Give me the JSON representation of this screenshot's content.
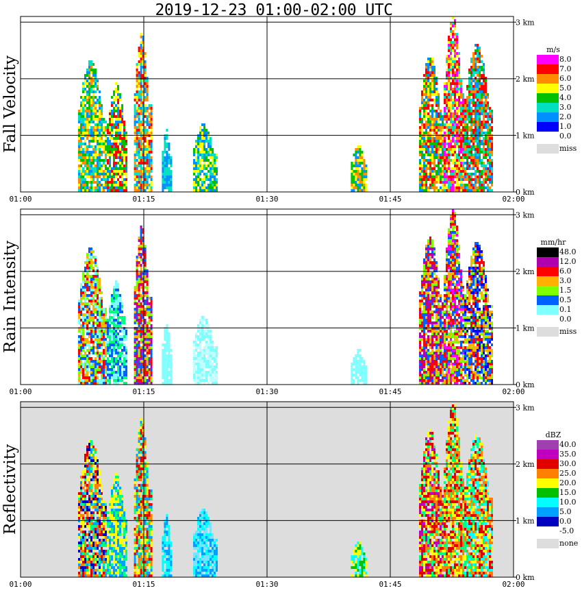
{
  "title": "2019-12-23   01:00-02:00 UTC",
  "chart_data": [
    {
      "type": "heatmap",
      "ylabel": "Fall Velocity",
      "background": "#ffffff",
      "x_ticks": [
        "01:00",
        "01:15",
        "01:30",
        "01:45",
        "02:00"
      ],
      "y_ticks": [
        "0 km",
        "1 km",
        "2 km",
        "3 km"
      ],
      "ylim": [
        0,
        3.1
      ],
      "legend": {
        "unit": "m/s",
        "labels": [
          "8.0",
          "7.0",
          "6.0",
          "5.0",
          "4.0",
          "3.0",
          "2.0",
          "1.0",
          "0.0",
          "miss"
        ],
        "colors": [
          "#ff00ff",
          "#ff0000",
          "#ff8c00",
          "#ffff00",
          "#00c000",
          "#00e0c0",
          "#0090ff",
          "#0000ff",
          "#ffffff",
          "#dddddd"
        ]
      },
      "cells": [
        {
          "t": [
            7.0,
            10.5
          ],
          "h": [
            0.0,
            2.3
          ],
          "colors": [
            "#0090ff",
            "#00e0c0",
            "#00c000",
            "#ffff00",
            "#ff8c00"
          ]
        },
        {
          "t": [
            10.5,
            13.0
          ],
          "h": [
            0.0,
            1.9
          ],
          "colors": [
            "#00c000",
            "#ffff00",
            "#0090ff",
            "#ff0000"
          ]
        },
        {
          "t": [
            13.8,
            15.8
          ],
          "h": [
            0.0,
            2.8
          ],
          "colors": [
            "#ff8c00",
            "#ffff00",
            "#ff0000",
            "#0090ff",
            "#00e0c0"
          ]
        },
        {
          "t": [
            17.2,
            18.3
          ],
          "h": [
            0.0,
            1.1
          ],
          "colors": [
            "#0090ff",
            "#00e0c0"
          ]
        },
        {
          "t": [
            21.0,
            23.8
          ],
          "h": [
            0.0,
            1.2
          ],
          "colors": [
            "#00e0c0",
            "#00c000",
            "#0090ff",
            "#ffff00"
          ]
        },
        {
          "t": [
            40.2,
            42.2
          ],
          "h": [
            0.0,
            0.8
          ],
          "colors": [
            "#00c000",
            "#ffff00",
            "#0090ff",
            "#ff8c00"
          ]
        },
        {
          "t": [
            48.5,
            51.5
          ],
          "h": [
            0.0,
            2.4
          ],
          "colors": [
            "#ff8c00",
            "#ffff00",
            "#ff0000",
            "#0090ff",
            "#00c000"
          ]
        },
        {
          "t": [
            51.5,
            54.0
          ],
          "h": [
            0.0,
            3.1
          ],
          "colors": [
            "#ff0000",
            "#ff8c00",
            "#ffff00",
            "#00e0c0",
            "#ff00ff"
          ]
        },
        {
          "t": [
            54.0,
            57.5
          ],
          "h": [
            0.0,
            2.6
          ],
          "colors": [
            "#ff8c00",
            "#ff0000",
            "#0090ff",
            "#00c000",
            "#00e0c0"
          ]
        }
      ]
    },
    {
      "type": "heatmap",
      "ylabel": "Rain Intensity",
      "background": "#ffffff",
      "x_ticks": [
        "01:00",
        "01:15",
        "01:30",
        "01:45",
        "02:00"
      ],
      "y_ticks": [
        "0 km",
        "1 km",
        "2 km",
        "3 km"
      ],
      "ylim": [
        0,
        3.1
      ],
      "legend": {
        "unit": "mm/hr",
        "labels": [
          "48.0",
          "12.0",
          "6.0",
          "3.0",
          "1.5",
          "0.5",
          "0.1",
          "0.0",
          "miss"
        ],
        "colors": [
          "#000000",
          "#b000b0",
          "#ff0000",
          "#ffb000",
          "#80ff00",
          "#0060ff",
          "#80ffff",
          "#ffffff",
          "#dddddd"
        ]
      },
      "cells": [
        {
          "t": [
            7.0,
            10.5
          ],
          "h": [
            0.0,
            2.4
          ],
          "colors": [
            "#80ffff",
            "#0060ff",
            "#80ff00",
            "#ffb000",
            "#ff0000"
          ]
        },
        {
          "t": [
            10.5,
            13.0
          ],
          "h": [
            0.0,
            1.8
          ],
          "colors": [
            "#80ffff",
            "#0060ff",
            "#00ff80"
          ]
        },
        {
          "t": [
            13.8,
            15.8
          ],
          "h": [
            0.0,
            2.8
          ],
          "colors": [
            "#ff0000",
            "#b000b0",
            "#0060ff",
            "#80ff00",
            "#ffb000"
          ]
        },
        {
          "t": [
            17.2,
            18.3
          ],
          "h": [
            0.0,
            1.1
          ],
          "colors": [
            "#80ffff"
          ]
        },
        {
          "t": [
            21.0,
            23.8
          ],
          "h": [
            0.0,
            1.2
          ],
          "colors": [
            "#80ffff",
            "#c0ffff"
          ]
        },
        {
          "t": [
            40.2,
            42.2
          ],
          "h": [
            0.0,
            0.6
          ],
          "colors": [
            "#80ffff"
          ]
        },
        {
          "t": [
            48.5,
            51.5
          ],
          "h": [
            0.0,
            2.6
          ],
          "colors": [
            "#ff0000",
            "#b000b0",
            "#0060ff",
            "#80ff00",
            "#ffb000"
          ]
        },
        {
          "t": [
            51.5,
            54.0
          ],
          "h": [
            0.0,
            3.1
          ],
          "colors": [
            "#ff0000",
            "#ff00ff",
            "#80ff00",
            "#0060ff",
            "#ffb000"
          ]
        },
        {
          "t": [
            54.0,
            57.5
          ],
          "h": [
            0.0,
            2.5
          ],
          "colors": [
            "#0000ff",
            "#0060ff",
            "#ff0000",
            "#ffb000",
            "#80ff00"
          ]
        }
      ]
    },
    {
      "type": "heatmap",
      "ylabel": "Reflectivity",
      "background": "#dddddd",
      "x_ticks": [
        "01:00",
        "01:15",
        "01:30",
        "01:45",
        "02:00"
      ],
      "y_ticks": [
        "0 km",
        "1 km",
        "2 km",
        "3 km"
      ],
      "ylim": [
        0,
        3.1
      ],
      "legend": {
        "unit": "dBZ",
        "labels": [
          "40.0",
          "35.0",
          "30.0",
          "25.0",
          "20.0",
          "15.0",
          "10.0",
          "5.0",
          "0.0",
          "-5.0",
          "none"
        ],
        "colors": [
          "#a040b0",
          "#c000c0",
          "#e00000",
          "#ff8000",
          "#ffff00",
          "#00c000",
          "#00ffff",
          "#00a0ff",
          "#0000c0",
          "#ffffff",
          "#dddddd"
        ]
      },
      "cells": [
        {
          "t": [
            7.0,
            10.5
          ],
          "h": [
            0.0,
            2.4
          ],
          "colors": [
            "#0000c0",
            "#00a0ff",
            "#00ff80",
            "#ffff00",
            "#ff8000",
            "#e00000"
          ]
        },
        {
          "t": [
            10.5,
            13.0
          ],
          "h": [
            0.0,
            1.8
          ],
          "colors": [
            "#00a0ff",
            "#00ff80",
            "#ffff00"
          ]
        },
        {
          "t": [
            13.8,
            15.8
          ],
          "h": [
            0.0,
            2.8
          ],
          "colors": [
            "#ff8000",
            "#ffff00",
            "#e00000",
            "#00ff80",
            "#00a0ff"
          ]
        },
        {
          "t": [
            17.2,
            18.3
          ],
          "h": [
            0.0,
            1.1
          ],
          "colors": [
            "#00a0ff",
            "#00ffff"
          ]
        },
        {
          "t": [
            21.0,
            23.8
          ],
          "h": [
            0.0,
            1.2
          ],
          "colors": [
            "#00a0ff",
            "#00ffff",
            "#80e0ff"
          ]
        },
        {
          "t": [
            40.2,
            42.2
          ],
          "h": [
            0.0,
            0.6
          ],
          "colors": [
            "#00c000",
            "#ffff00",
            "#00ffff"
          ]
        },
        {
          "t": [
            48.5,
            51.5
          ],
          "h": [
            0.0,
            2.6
          ],
          "colors": [
            "#e00000",
            "#ff8000",
            "#c000c0",
            "#ffff00",
            "#00ff80"
          ]
        },
        {
          "t": [
            51.5,
            54.0
          ],
          "h": [
            0.0,
            3.1
          ],
          "colors": [
            "#ff8000",
            "#ffff00",
            "#e00000",
            "#00ff80"
          ]
        },
        {
          "t": [
            54.0,
            57.5
          ],
          "h": [
            0.0,
            2.5
          ],
          "colors": [
            "#ff8000",
            "#ffff00",
            "#e00000",
            "#00ff80",
            "#00ffff"
          ]
        }
      ]
    }
  ]
}
